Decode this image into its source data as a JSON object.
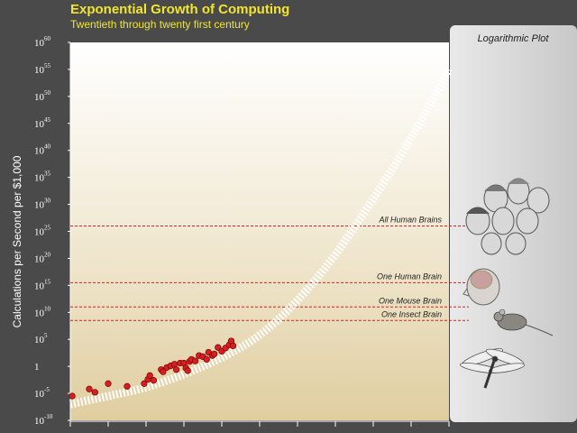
{
  "header": {
    "title": "Exponential Growth of Computing",
    "subtitle": "Twentieth through twenty first century"
  },
  "panel": {
    "title": "Logarithmic Plot"
  },
  "icons": [
    "human-heads-icon",
    "human-brain-icon",
    "mouse-icon",
    "insect-icon"
  ],
  "colors": {
    "background": "#4a4a4a",
    "title": "#f2e62a",
    "point": "#d42020",
    "reference_line": "#d42020",
    "trend": "#ffffff"
  },
  "chart_data": {
    "type": "scatter",
    "scale": "log",
    "ylabel": "Calculations per Second per $1,000",
    "yticks": [
      {
        "base": "10",
        "exp": "60",
        "value": 60
      },
      {
        "base": "10",
        "exp": "55",
        "value": 55
      },
      {
        "base": "10",
        "exp": "50",
        "value": 50
      },
      {
        "base": "10",
        "exp": "45",
        "value": 45
      },
      {
        "base": "10",
        "exp": "40",
        "value": 40
      },
      {
        "base": "10",
        "exp": "35",
        "value": 35
      },
      {
        "base": "10",
        "exp": "30",
        "value": 30
      },
      {
        "base": "10",
        "exp": "25",
        "value": 25
      },
      {
        "base": "10",
        "exp": "20",
        "value": 20
      },
      {
        "base": "10",
        "exp": "15",
        "value": 15
      },
      {
        "base": "10",
        "exp": "10",
        "value": 10
      },
      {
        "base": "10",
        "exp": "5",
        "value": 5
      },
      {
        "base": "1",
        "exp": "",
        "value": 0
      },
      {
        "base": "10",
        "exp": "-5",
        "value": -5
      },
      {
        "base": "10",
        "exp": "-10",
        "value": -10
      }
    ],
    "ylim": [
      -10,
      60
    ],
    "xlim": [
      1900,
      2100
    ],
    "xtick_count": 11,
    "reference_lines": [
      {
        "label": "All Human Brains",
        "value": 26
      },
      {
        "label": "One Human Brain",
        "value": 15.5
      },
      {
        "label": "One Mouse Brain",
        "value": 11
      },
      {
        "label": "One Insect Brain",
        "value": 8.5
      }
    ],
    "trend": [
      [
        1900,
        -7.0
      ],
      [
        1920,
        -5.5
      ],
      [
        1940,
        -4.0
      ],
      [
        1960,
        -1.5
      ],
      [
        1980,
        1.5
      ],
      [
        2000,
        5.5
      ],
      [
        2020,
        12.0
      ],
      [
        2040,
        20.5
      ],
      [
        2060,
        31.0
      ],
      [
        2080,
        42.0
      ],
      [
        2100,
        55.0
      ]
    ],
    "points": [
      [
        1901,
        -5.5
      ],
      [
        1910,
        -4.2
      ],
      [
        1913,
        -4.8
      ],
      [
        1920,
        -3.2
      ],
      [
        1930,
        -3.7
      ],
      [
        1939,
        -3.2
      ],
      [
        1941,
        -2.4
      ],
      [
        1942,
        -1.7
      ],
      [
        1944,
        -2.6
      ],
      [
        1948,
        -0.6
      ],
      [
        1949,
        -1.0
      ],
      [
        1951,
        -0.2
      ],
      [
        1953,
        0.1
      ],
      [
        1955,
        0.4
      ],
      [
        1956,
        -0.6
      ],
      [
        1958,
        0.6
      ],
      [
        1960,
        0.6
      ],
      [
        1961,
        -0.3
      ],
      [
        1962,
        -0.8
      ],
      [
        1963,
        0.9
      ],
      [
        1964,
        1.3
      ],
      [
        1966,
        1.0
      ],
      [
        1968,
        2.0
      ],
      [
        1970,
        1.8
      ],
      [
        1972,
        1.3
      ],
      [
        1973,
        2.6
      ],
      [
        1975,
        2.0
      ],
      [
        1976,
        2.3
      ],
      [
        1978,
        3.5
      ],
      [
        1980,
        2.8
      ],
      [
        1982,
        3.4
      ],
      [
        1984,
        4.0
      ],
      [
        1985,
        4.7
      ],
      [
        1986,
        3.8
      ]
    ]
  }
}
